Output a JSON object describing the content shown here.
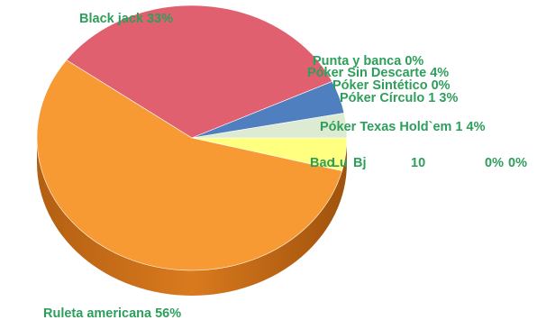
{
  "chart_data": {
    "type": "pie",
    "title": "",
    "units": "%",
    "slices": [
      {
        "label": "Póker Texas Hold`em 1",
        "value": 4,
        "text": "Póker Texas Hold`em 1 4%",
        "color": "#ffff80"
      },
      {
        "label": "Ruleta americana",
        "value": 56,
        "text": "Ruleta americana 56%",
        "color": "#f79a34"
      },
      {
        "label": "Black jack",
        "value": 33,
        "text": "Black jack 33%",
        "color": "#e06070"
      },
      {
        "label": "Punta y banca",
        "value": 0,
        "text": "Punta y banca 0%",
        "color": "#8fbc5a"
      },
      {
        "label": "Póker Sin Descarte",
        "value": 4,
        "text": "Póker Sin Descarte 4%",
        "color": "#4f7fbf"
      },
      {
        "label": "Póker Sintético",
        "value": 0,
        "text": "Póker Sintético 0%",
        "color": "#b0b0b0"
      },
      {
        "label": "Póker Círculo 1",
        "value": 3,
        "text": "Póker Círculo 1 3%",
        "color": "#dcebd2"
      }
    ],
    "overlapping_labels": [
      "Bac",
      "Lu",
      "Bj",
      "10",
      "0%",
      "0%"
    ]
  }
}
